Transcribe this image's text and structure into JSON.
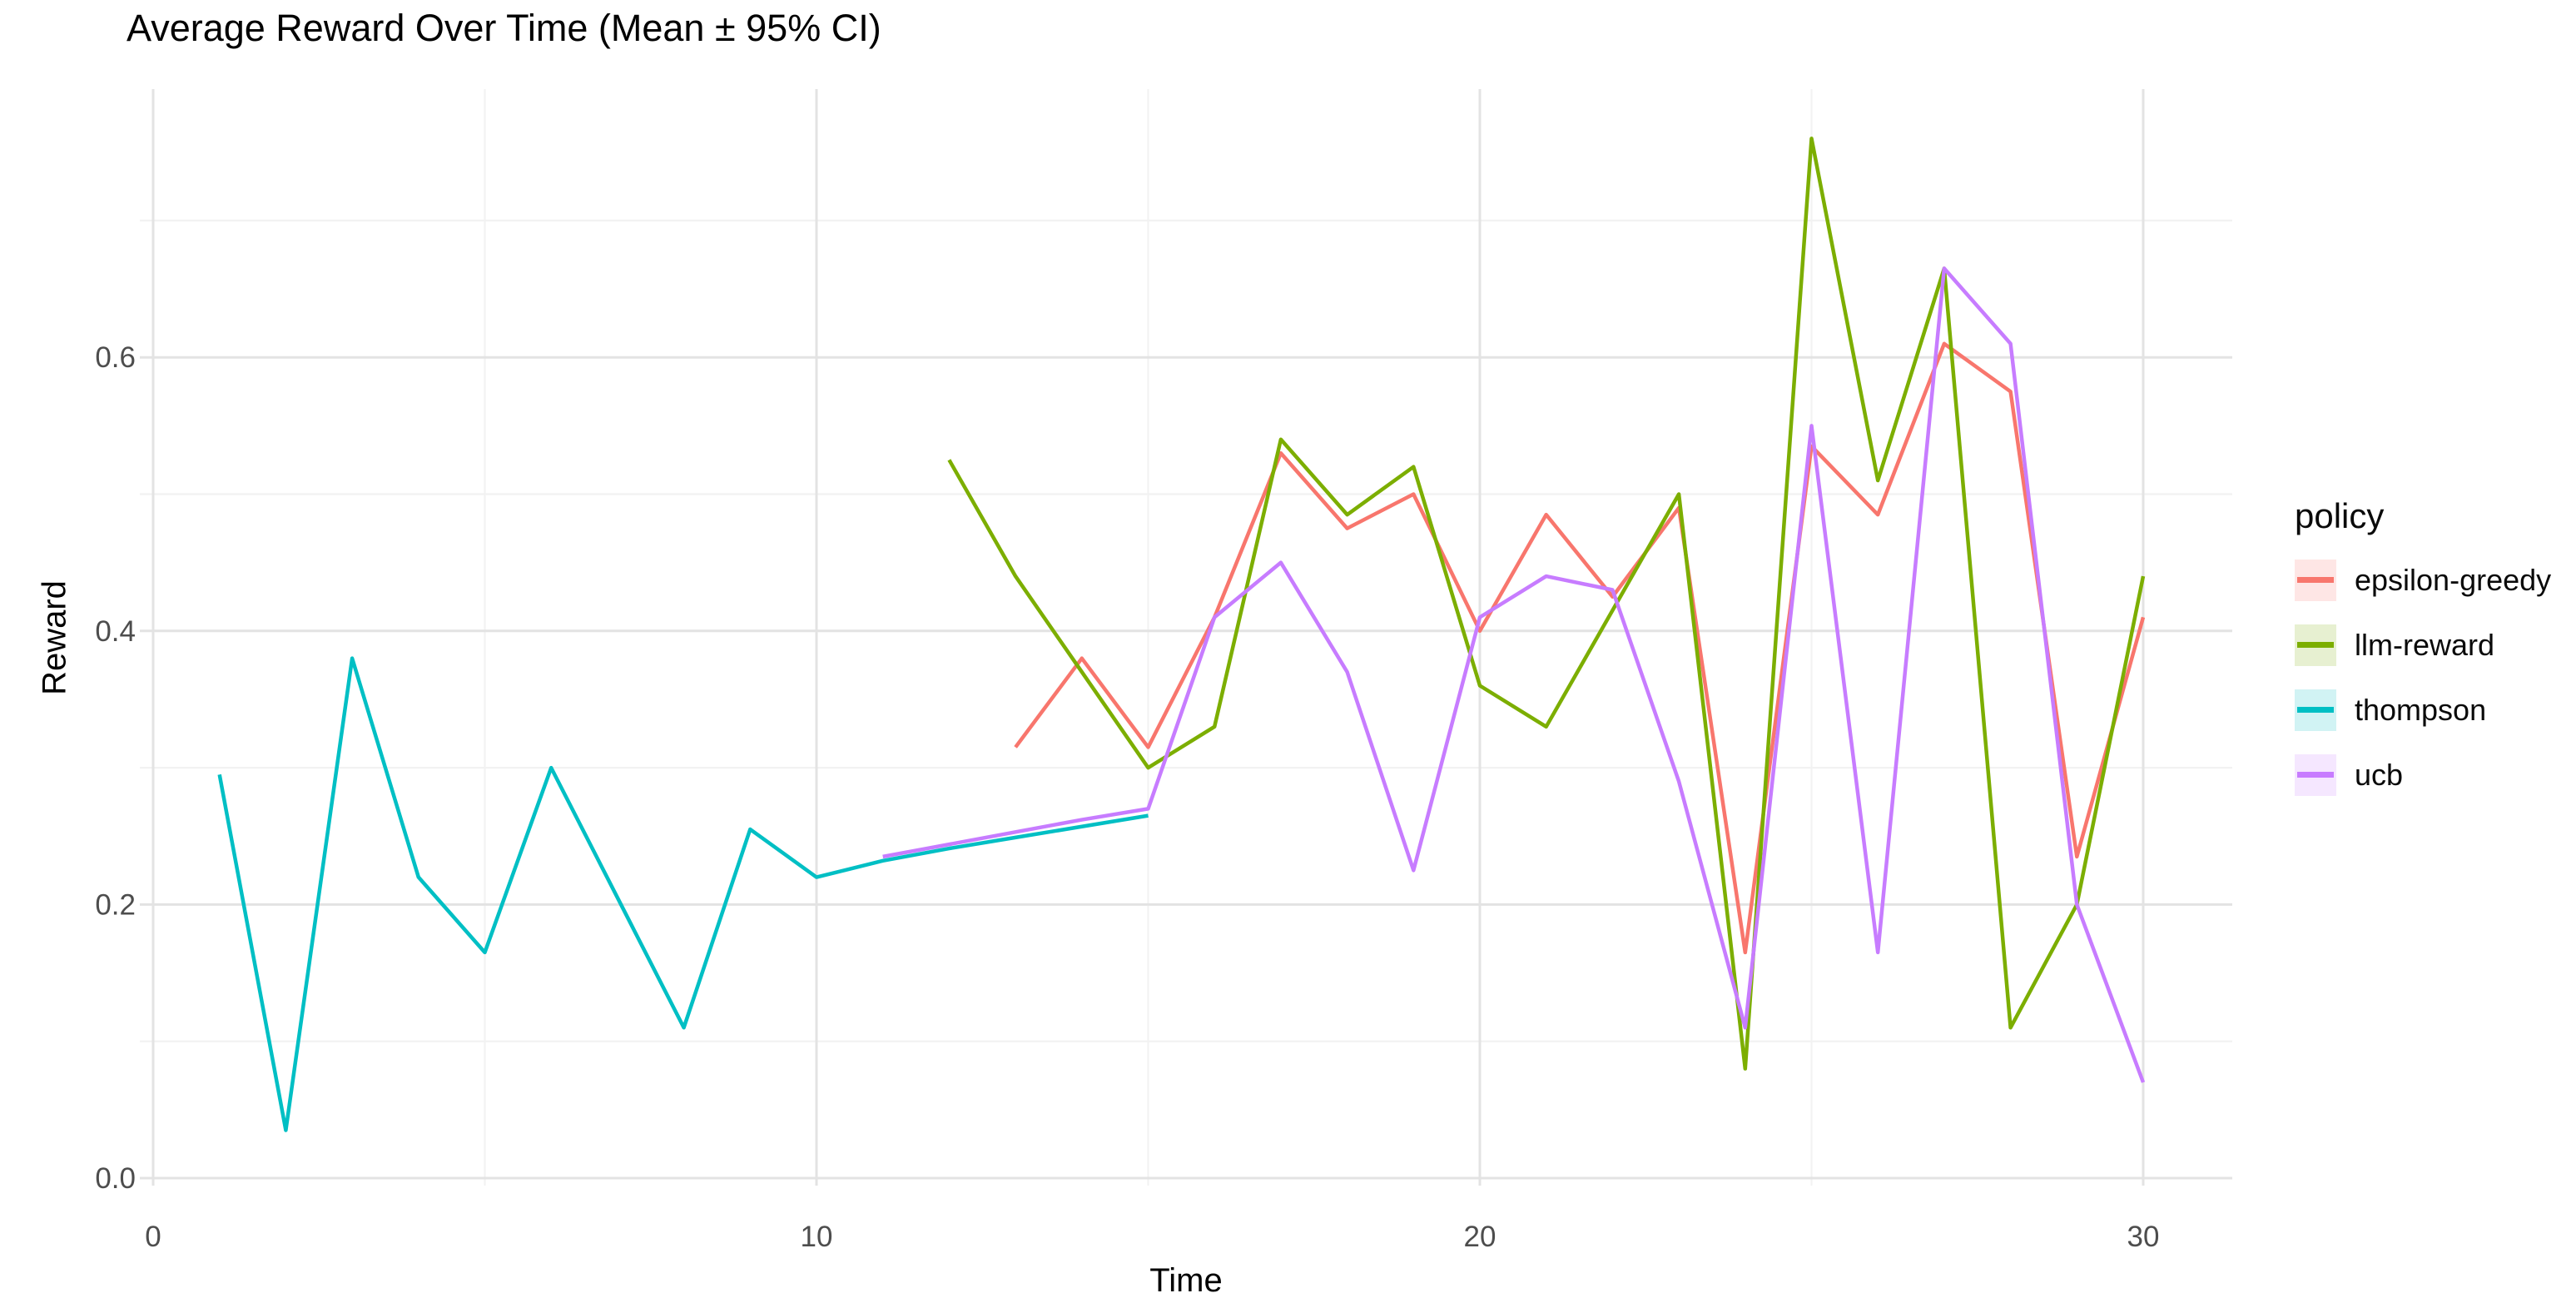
{
  "title": "Average Reward Over Time (Mean ± 95% CI)",
  "chart_data": {
    "type": "line",
    "title": "Average Reward Over Time (Mean ± 95% CI)",
    "xlabel": "Time",
    "ylabel": "Reward",
    "legend_title": "policy",
    "legend_position": "right",
    "grid": true,
    "xlim": [
      -0.2,
      31.3
    ],
    "ylim": [
      -0.005,
      0.795
    ],
    "x_ticks": [
      0,
      10,
      20,
      30
    ],
    "x_tick_labels": [
      "0",
      "10",
      "20",
      "30"
    ],
    "x_minor_gridlines": [
      5,
      15,
      25
    ],
    "y_ticks": [
      0.0,
      0.2,
      0.4,
      0.6
    ],
    "y_tick_labels": [
      "0.0",
      "0.2",
      "0.4",
      "0.6"
    ],
    "y_minor_gridlines": [
      0.1,
      0.3,
      0.5,
      0.7
    ],
    "series": [
      {
        "name": "epsilon-greedy",
        "color": "#F8766D",
        "x": [
          13,
          14,
          15,
          16,
          17,
          18,
          19,
          20,
          21,
          22,
          23,
          24,
          25,
          26,
          27,
          28,
          29,
          30
        ],
        "y": [
          0.315,
          0.38,
          0.315,
          0.41,
          0.53,
          0.475,
          0.5,
          0.4,
          0.485,
          0.425,
          0.49,
          0.165,
          0.535,
          0.485,
          0.61,
          0.575,
          0.235,
          0.41
        ]
      },
      {
        "name": "llm-reward",
        "color": "#7CAE00",
        "x": [
          12,
          13,
          14,
          15,
          16,
          17,
          18,
          19,
          20,
          21,
          22,
          23,
          24,
          25,
          26,
          27,
          28,
          29,
          30
        ],
        "y": [
          0.525,
          0.44,
          0.37,
          0.3,
          0.33,
          0.54,
          0.485,
          0.52,
          0.36,
          0.33,
          0.415,
          0.5,
          0.08,
          0.76,
          0.51,
          0.665,
          0.11,
          0.2,
          0.44
        ]
      },
      {
        "name": "thompson",
        "color": "#00BFC4",
        "x": [
          1,
          2,
          3,
          4,
          5,
          6,
          7,
          8,
          9,
          10,
          11,
          12,
          13,
          14,
          15
        ],
        "y": [
          0.295,
          0.035,
          0.38,
          0.22,
          0.165,
          0.3,
          0.205,
          0.11,
          0.255,
          0.22,
          0.232,
          0.241,
          0.249,
          0.257,
          0.265
        ]
      },
      {
        "name": "ucb",
        "color": "#C77CFF",
        "x": [
          11,
          12,
          13,
          14,
          15,
          16,
          17,
          18,
          19,
          20,
          21,
          22,
          23,
          24,
          25,
          26,
          27,
          28,
          29,
          30
        ],
        "y": [
          0.235,
          0.244,
          0.253,
          0.262,
          0.27,
          0.41,
          0.45,
          0.37,
          0.225,
          0.41,
          0.44,
          0.43,
          0.29,
          0.11,
          0.55,
          0.165,
          0.665,
          0.61,
          0.2,
          0.07
        ]
      }
    ]
  }
}
